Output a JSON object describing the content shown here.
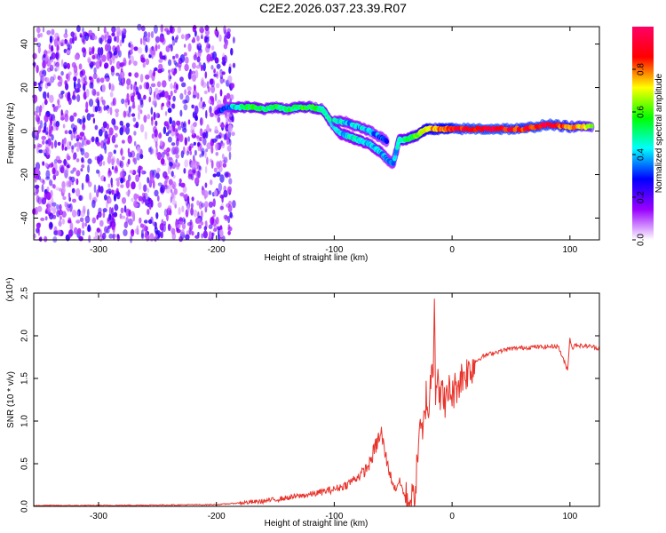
{
  "title": "C2E2.2026.037.23.39.R07",
  "chart_data": [
    {
      "type": "heatmap",
      "xlabel": "Height of straight line (km)",
      "ylabel": "Frequency (Hz)",
      "xlim": [
        -355,
        125
      ],
      "ylim": [
        -50,
        48
      ],
      "xticks": [
        -300,
        -200,
        -100,
        0,
        100
      ],
      "yticks": [
        -40,
        -20,
        0,
        20,
        40
      ],
      "x_tick_labels": [
        "-300",
        "-200",
        "-100",
        "0",
        "100"
      ],
      "y_tick_labels": [
        "-40",
        "-20",
        "0",
        "20",
        "40"
      ],
      "colorbar": {
        "label": "Normalized spectral amplitude",
        "range": [
          0,
          1
        ],
        "ticks": [
          0.0,
          0.2,
          0.4,
          0.6,
          0.8
        ],
        "tick_labels": [
          "0.0",
          "0.2",
          "0.4",
          "0.6",
          "0.8"
        ],
        "colormap": [
          "#ffffff",
          "#9900ff",
          "#0000ff",
          "#00ffff",
          "#00ff00",
          "#ffff00",
          "#ff0000",
          "#ff0066"
        ]
      },
      "noise_region": {
        "x": [
          -355,
          -185
        ],
        "amplitude": 0.2
      },
      "ridge": {
        "x": [
          -200,
          -190,
          -180,
          -170,
          -160,
          -150,
          -140,
          -130,
          -120,
          -110,
          -105,
          -100,
          -95,
          -90,
          -85,
          -80,
          -75,
          -70,
          -65,
          -60,
          -55,
          -50,
          -45,
          -40,
          -35,
          -30,
          -25,
          -20,
          -10,
          0,
          20,
          40,
          60,
          80,
          100,
          120
        ],
        "y": [
          9,
          11,
          11,
          11,
          10,
          11,
          10,
          11,
          11,
          10,
          6,
          2,
          -1,
          -2,
          -3,
          -4,
          -5,
          -6,
          -8,
          -10,
          -13,
          -15,
          -4,
          -4,
          -3,
          -2,
          0,
          1,
          1,
          1,
          1,
          1,
          1,
          3,
          2,
          2
        ],
        "amplitude": [
          0.2,
          0.35,
          0.5,
          0.55,
          0.5,
          0.55,
          0.5,
          0.55,
          0.55,
          0.5,
          0.45,
          0.4,
          0.4,
          0.4,
          0.45,
          0.45,
          0.4,
          0.4,
          0.4,
          0.4,
          0.35,
          0.35,
          0.45,
          0.5,
          0.55,
          0.6,
          0.7,
          0.75,
          0.8,
          0.85,
          0.9,
          0.9,
          0.85,
          0.9,
          0.8,
          0.6
        ]
      },
      "secondary_ridge": {
        "x": [
          -100,
          -90,
          -80,
          -70,
          -60,
          -55
        ],
        "y": [
          5,
          4,
          2,
          0,
          -3,
          -5
        ],
        "amplitude": [
          0.45,
          0.4,
          0.4,
          0.4,
          0.35,
          0.3
        ]
      }
    },
    {
      "type": "line",
      "xlabel": "Height of straight line (km)",
      "ylabel": "SNR (10 * v/v)",
      "y_multiplier": "(x10⁴)",
      "xlim": [
        -355,
        125
      ],
      "ylim": [
        0,
        2.5
      ],
      "xticks": [
        -300,
        -200,
        -100,
        0,
        100
      ],
      "yticks": [
        0.0,
        0.5,
        1.0,
        1.5,
        2.0,
        2.5
      ],
      "x_tick_labels": [
        "-300",
        "-200",
        "-100",
        "0",
        "100"
      ],
      "y_tick_labels": [
        "0.0",
        "0.5",
        "1.0",
        "1.5",
        "2.0",
        "2.5"
      ],
      "grid": false,
      "series": [
        {
          "color": "#e8322a",
          "x": [
            -355,
            -300,
            -250,
            -200,
            -180,
            -160,
            -140,
            -120,
            -110,
            -100,
            -90,
            -80,
            -75,
            -70,
            -65,
            -62,
            -60,
            -58,
            -55,
            -52,
            -50,
            -48,
            -45,
            -42,
            -40,
            -38,
            -35,
            -32,
            -30,
            -28,
            -25,
            -22,
            -20,
            -18,
            -16,
            -15,
            -14,
            -12,
            -10,
            -8,
            -5,
            -2,
            0,
            5,
            10,
            15,
            20,
            25,
            30,
            40,
            50,
            60,
            70,
            80,
            90,
            95,
            98,
            100,
            102,
            105,
            110,
            115,
            120,
            125
          ],
          "y": [
            0.01,
            0.01,
            0.015,
            0.02,
            0.04,
            0.06,
            0.1,
            0.14,
            0.17,
            0.2,
            0.25,
            0.35,
            0.4,
            0.5,
            0.7,
            0.8,
            0.85,
            0.7,
            0.5,
            0.35,
            0.25,
            0.2,
            0.3,
            0.2,
            0.1,
            0.08,
            0.05,
            0.1,
            0.4,
            0.9,
            0.8,
            1.3,
            1.1,
            1.5,
            1.7,
            2.5,
            1.4,
            1.6,
            1.2,
            1.35,
            1.2,
            1.4,
            1.3,
            1.45,
            1.55,
            1.6,
            1.7,
            1.75,
            1.78,
            1.82,
            1.85,
            1.86,
            1.87,
            1.87,
            1.88,
            1.7,
            1.6,
            1.98,
            1.85,
            1.9,
            1.88,
            1.88,
            1.87,
            1.85
          ]
        }
      ]
    }
  ]
}
